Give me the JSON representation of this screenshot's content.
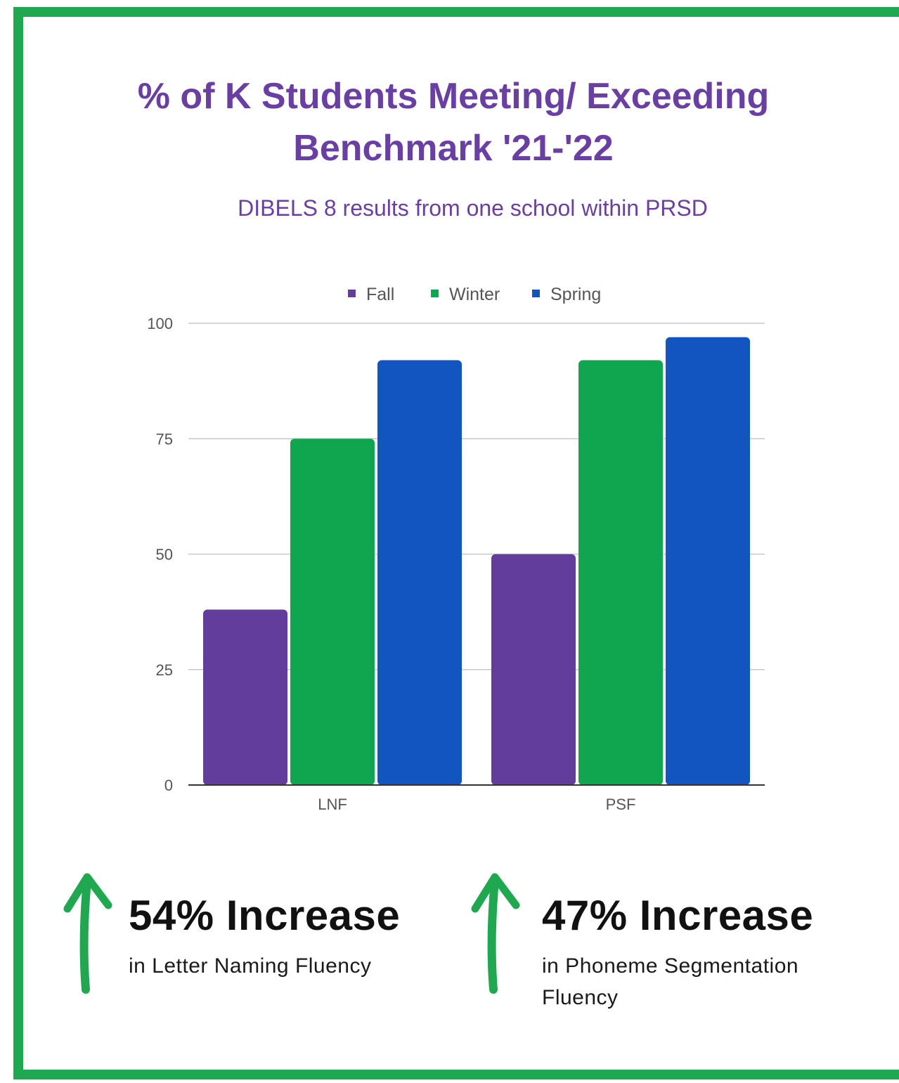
{
  "title": "% of K Students Meeting/ Exceeding Benchmark '21-'22",
  "subtitle": "DIBELS 8 results from one school within PRSD",
  "colors": {
    "border": "#1fa84f",
    "accent": "#6a3fa4",
    "arrow": "#1fa84f"
  },
  "chart_data": {
    "type": "bar",
    "categories": [
      "LNF",
      "PSF"
    ],
    "series": [
      {
        "name": "Fall",
        "color": "#623d9b",
        "values": [
          38,
          50
        ]
      },
      {
        "name": "Winter",
        "color": "#10a64f",
        "values": [
          75,
          92
        ]
      },
      {
        "name": "Spring",
        "color": "#1255c0",
        "values": [
          92,
          97
        ]
      }
    ],
    "yticks": [
      "0",
      "25",
      "50",
      "75",
      "100"
    ],
    "ylim": [
      0,
      100
    ],
    "grid": true,
    "legend": "top-center",
    "xlabel": "",
    "ylabel": ""
  },
  "stats": [
    {
      "value": "54% Increase",
      "desc": "in Letter Naming Fluency",
      "icon": "up-arrow-icon"
    },
    {
      "value": "47% Increase",
      "desc": "in Phoneme Segmentation Fluency",
      "icon": "up-arrow-icon"
    }
  ]
}
